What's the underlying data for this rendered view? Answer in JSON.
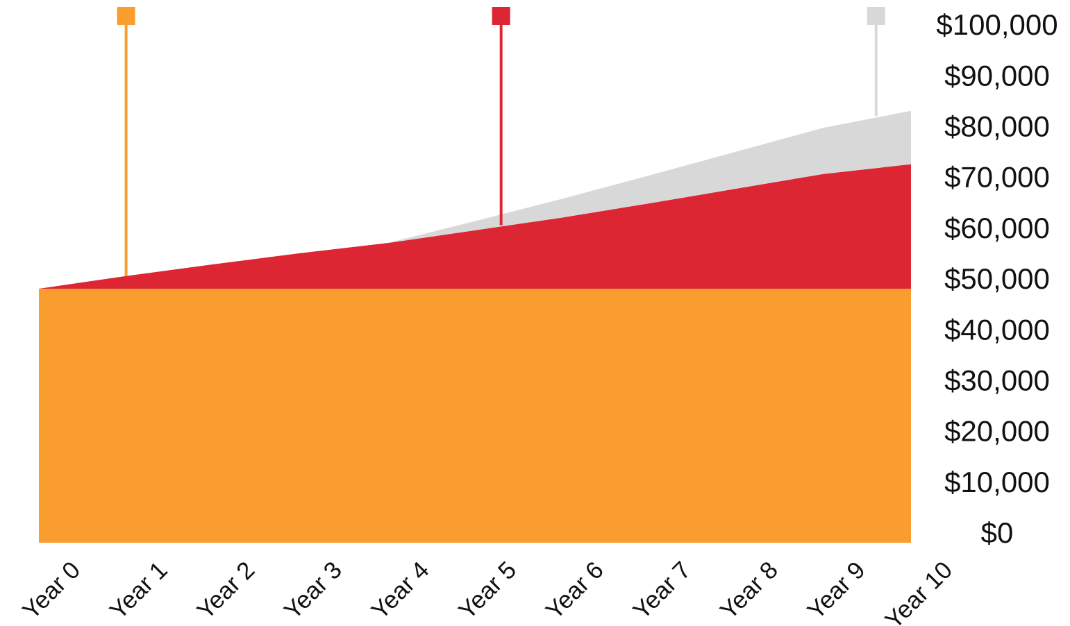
{
  "chart_data": {
    "type": "area",
    "stacked": true,
    "categories": [
      "Year 0",
      "Year 1",
      "Year 2",
      "Year 3",
      "Year 4",
      "Year 5",
      "Year 6",
      "Year 7",
      "Year 8",
      "Year 9",
      "Year 10"
    ],
    "y_ticks": [
      "$0",
      "$10,000",
      "$20,000",
      "$30,000",
      "$40,000",
      "$50,000",
      "$60,000",
      "$70,000",
      "$80,000",
      "$90,000",
      "$100,000"
    ],
    "ylim": [
      0,
      100000
    ],
    "y_axis_position": "right",
    "grid": false,
    "legend": "none",
    "series": [
      {
        "color": "#f99d2e",
        "values": [
          50000,
          50000,
          50000,
          50000,
          50000,
          50000,
          50000,
          50000,
          50000,
          50000,
          50000
        ]
      },
      {
        "color": "#dc2634",
        "values": [
          0,
          2500,
          4800,
          7000,
          9000,
          11500,
          14000,
          16800,
          19700,
          22600,
          24500
        ]
      },
      {
        "color": "#d8d8d8",
        "values": [
          0,
          0,
          0,
          0,
          0,
          1800,
          3700,
          5500,
          7300,
          9100,
          10500
        ]
      }
    ],
    "markers": [
      {
        "color": "#f99d2e",
        "x": 1.0,
        "y": 52500
      },
      {
        "color": "#dc2634",
        "x": 5.3,
        "y": 62500
      },
      {
        "color": "#d8d8d8",
        "x": 9.6,
        "y": 84000
      }
    ]
  }
}
